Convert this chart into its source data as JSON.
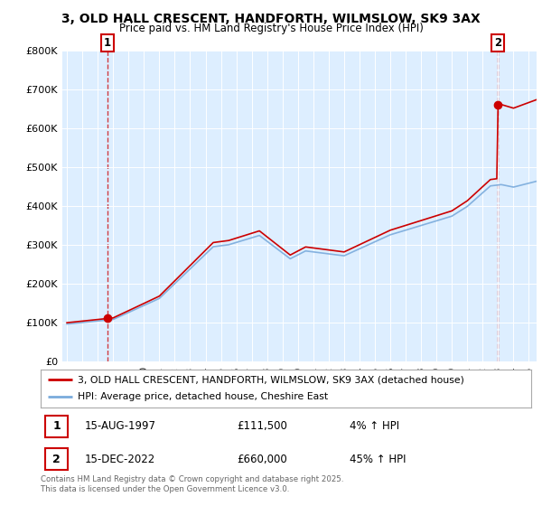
{
  "title_line1": "3, OLD HALL CRESCENT, HANDFORTH, WILMSLOW, SK9 3AX",
  "title_line2": "Price paid vs. HM Land Registry's House Price Index (HPI)",
  "background_color": "#ffffff",
  "plot_background": "#ddeeff",
  "ylim": [
    0,
    800000
  ],
  "yticks": [
    0,
    100000,
    200000,
    300000,
    400000,
    500000,
    600000,
    700000,
    800000
  ],
  "ytick_labels": [
    "£0",
    "£100K",
    "£200K",
    "£300K",
    "£400K",
    "£500K",
    "£600K",
    "£700K",
    "£800K"
  ],
  "sale1_year": 1997.62,
  "sale1_price": 111500,
  "sale2_year": 2022.96,
  "sale2_price": 660000,
  "sale1_label": "1",
  "sale2_label": "2",
  "legend_line1": "3, OLD HALL CRESCENT, HANDFORTH, WILMSLOW, SK9 3AX (detached house)",
  "legend_line2": "HPI: Average price, detached house, Cheshire East",
  "table_row1": [
    "1",
    "15-AUG-1997",
    "£111,500",
    "4% ↑ HPI"
  ],
  "table_row2": [
    "2",
    "15-DEC-2022",
    "£660,000",
    "45% ↑ HPI"
  ],
  "footer": "Contains HM Land Registry data © Crown copyright and database right 2025.\nThis data is licensed under the Open Government Licence v3.0.",
  "red_line_color": "#cc0000",
  "blue_line_color": "#7aabdc",
  "grid_color": "#ffffff",
  "label_box_color": "#cc0000",
  "xlim_left": 1994.7,
  "xlim_right": 2025.5
}
